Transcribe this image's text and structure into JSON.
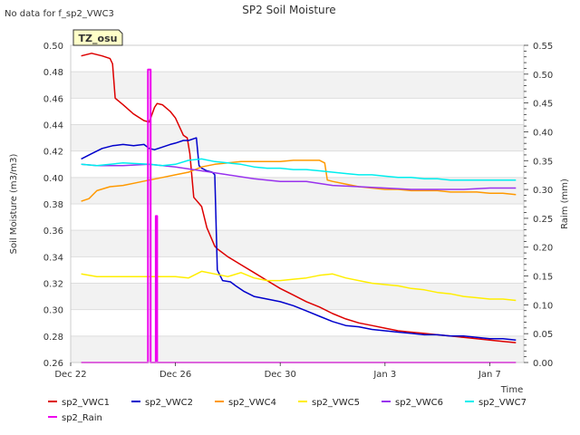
{
  "nodata_note": "No data for f_sp2_VWC3",
  "chart_data": {
    "type": "line",
    "title": "SP2 Soil Moisture",
    "xlabel": "Time",
    "ylabel": "Soil Moisture (m3/m3)",
    "y2label": "Raim (mm)",
    "badge": "TZ_osu",
    "x_tick_labels": [
      "Dec 22",
      "Dec 26",
      "Dec 30",
      "Jan 3",
      "Jan 7"
    ],
    "x_tick_days": [
      0,
      4,
      8,
      12,
      16
    ],
    "xlim_days": [
      0,
      17.3
    ],
    "ylim": [
      0.26,
      0.5
    ],
    "y_ticks": [
      "0.26",
      "0.28",
      "0.30",
      "0.32",
      "0.34",
      "0.36",
      "0.38",
      "0.40",
      "0.42",
      "0.44",
      "0.46",
      "0.48",
      "0.50"
    ],
    "y2lim": [
      0.0,
      0.55
    ],
    "y2_ticks": [
      "0.00",
      "0.05",
      "0.10",
      "0.15",
      "0.20",
      "0.25",
      "0.30",
      "0.35",
      "0.40",
      "0.45",
      "0.50",
      "0.55"
    ],
    "grid": true,
    "legend_position": "bottom",
    "series": [
      {
        "name": "sp2_VWC1",
        "color": "#dd0000",
        "axis": "left",
        "x": [
          0.4,
          0.8,
          1.2,
          1.5,
          1.6,
          1.7,
          2.0,
          2.4,
          2.8,
          3.0,
          3.2,
          3.3,
          3.5,
          3.8,
          4.0,
          4.3,
          4.45,
          4.55,
          4.7,
          5.0,
          5.2,
          5.5,
          5.6,
          6.0,
          6.5,
          7.0,
          7.5,
          8.0,
          8.5,
          9.0,
          9.5,
          10.0,
          10.5,
          11.0,
          11.5,
          12.0,
          12.5,
          13.0,
          13.5,
          14.0,
          14.5,
          15.0,
          15.5,
          16.0,
          16.5,
          17.0
        ],
        "y": [
          0.492,
          0.494,
          0.492,
          0.49,
          0.486,
          0.46,
          0.455,
          0.448,
          0.443,
          0.442,
          0.453,
          0.456,
          0.455,
          0.45,
          0.445,
          0.432,
          0.43,
          0.418,
          0.385,
          0.378,
          0.362,
          0.348,
          0.346,
          0.34,
          0.334,
          0.328,
          0.322,
          0.316,
          0.311,
          0.306,
          0.302,
          0.297,
          0.293,
          0.29,
          0.288,
          0.286,
          0.284,
          0.283,
          0.282,
          0.281,
          0.28,
          0.279,
          0.278,
          0.277,
          0.276,
          0.275
        ]
      },
      {
        "name": "sp2_VWC2",
        "color": "#0000cc",
        "axis": "left",
        "x": [
          0.4,
          0.8,
          1.2,
          1.6,
          2.0,
          2.4,
          2.8,
          3.0,
          3.2,
          3.5,
          3.8,
          4.0,
          4.3,
          4.5,
          4.8,
          4.9,
          5.0,
          5.2,
          5.4,
          5.5,
          5.6,
          5.8,
          6.1,
          6.3,
          6.6,
          7.0,
          7.5,
          8.0,
          8.5,
          9.0,
          9.5,
          10.0,
          10.5,
          11.0,
          11.5,
          12.0,
          12.5,
          13.0,
          13.5,
          14.0,
          14.5,
          15.0,
          15.5,
          16.0,
          16.5,
          17.0
        ],
        "y": [
          0.414,
          0.418,
          0.422,
          0.424,
          0.425,
          0.424,
          0.425,
          0.422,
          0.421,
          0.423,
          0.425,
          0.426,
          0.428,
          0.428,
          0.43,
          0.409,
          0.407,
          0.405,
          0.404,
          0.402,
          0.33,
          0.322,
          0.321,
          0.318,
          0.314,
          0.31,
          0.308,
          0.306,
          0.303,
          0.299,
          0.295,
          0.291,
          0.288,
          0.287,
          0.285,
          0.284,
          0.283,
          0.282,
          0.281,
          0.281,
          0.28,
          0.28,
          0.279,
          0.278,
          0.278,
          0.277
        ]
      },
      {
        "name": "sp2_VWC4",
        "color": "#ff9900",
        "axis": "left",
        "x": [
          0.4,
          0.7,
          1.0,
          1.5,
          2.0,
          2.5,
          3.0,
          3.5,
          4.0,
          4.5,
          5.0,
          5.5,
          6.0,
          6.5,
          7.0,
          7.5,
          8.0,
          8.5,
          9.0,
          9.5,
          9.7,
          9.8,
          10.0,
          10.5,
          11.0,
          11.5,
          12.0,
          12.5,
          13.0,
          13.5,
          14.0,
          14.5,
          15.0,
          15.5,
          16.0,
          16.5,
          17.0
        ],
        "y": [
          0.382,
          0.384,
          0.39,
          0.393,
          0.394,
          0.396,
          0.398,
          0.4,
          0.402,
          0.404,
          0.408,
          0.41,
          0.411,
          0.412,
          0.412,
          0.412,
          0.412,
          0.413,
          0.413,
          0.413,
          0.411,
          0.398,
          0.397,
          0.395,
          0.393,
          0.392,
          0.391,
          0.391,
          0.39,
          0.39,
          0.39,
          0.389,
          0.389,
          0.389,
          0.388,
          0.388,
          0.387
        ]
      },
      {
        "name": "sp2_VWC5",
        "color": "#ffee00",
        "axis": "left",
        "x": [
          0.4,
          1.0,
          2.0,
          3.0,
          4.0,
          4.5,
          5.0,
          5.5,
          6.0,
          6.5,
          7.0,
          7.5,
          8.0,
          8.5,
          9.0,
          9.5,
          10.0,
          10.5,
          11.0,
          11.5,
          12.0,
          12.5,
          13.0,
          13.5,
          14.0,
          14.5,
          15.0,
          15.5,
          16.0,
          16.5,
          17.0
        ],
        "y": [
          0.327,
          0.325,
          0.325,
          0.325,
          0.325,
          0.324,
          0.329,
          0.327,
          0.325,
          0.328,
          0.324,
          0.322,
          0.322,
          0.323,
          0.324,
          0.326,
          0.327,
          0.324,
          0.322,
          0.32,
          0.319,
          0.318,
          0.316,
          0.315,
          0.313,
          0.312,
          0.31,
          0.309,
          0.308,
          0.308,
          0.307
        ]
      },
      {
        "name": "sp2_VWC6",
        "color": "#9933ee",
        "axis": "left",
        "x": [
          0.4,
          1.0,
          2.0,
          3.0,
          4.0,
          5.0,
          6.0,
          7.0,
          8.0,
          9.0,
          10.0,
          11.0,
          12.0,
          13.0,
          14.0,
          15.0,
          16.0,
          17.0
        ],
        "y": [
          0.41,
          0.409,
          0.409,
          0.41,
          0.408,
          0.405,
          0.402,
          0.399,
          0.397,
          0.397,
          0.394,
          0.393,
          0.392,
          0.391,
          0.391,
          0.391,
          0.392,
          0.392
        ]
      },
      {
        "name": "sp2_VWC7",
        "color": "#00eeee",
        "axis": "left",
        "x": [
          0.4,
          1.0,
          2.0,
          3.0,
          3.5,
          4.0,
          4.5,
          5.0,
          5.5,
          6.0,
          6.5,
          7.0,
          7.5,
          8.0,
          8.5,
          9.0,
          9.5,
          10.0,
          10.5,
          11.0,
          11.5,
          12.0,
          12.5,
          13.0,
          13.5,
          14.0,
          14.5,
          15.0,
          15.5,
          16.0,
          16.5,
          17.0
        ],
        "y": [
          0.41,
          0.409,
          0.411,
          0.41,
          0.409,
          0.41,
          0.413,
          0.414,
          0.412,
          0.411,
          0.41,
          0.408,
          0.407,
          0.407,
          0.406,
          0.406,
          0.405,
          0.404,
          0.403,
          0.402,
          0.402,
          0.401,
          0.4,
          0.4,
          0.399,
          0.399,
          0.398,
          0.398,
          0.398,
          0.398,
          0.398,
          0.398
        ]
      },
      {
        "name": "sp2_Rain",
        "color": "#ee00ee",
        "axis": "right",
        "x": [
          0.4,
          2.95,
          2.95,
          3.0,
          3.0,
          3.05,
          3.05,
          3.25,
          3.25,
          3.3,
          3.3,
          17.0
        ],
        "y": [
          0.0,
          0.0,
          0.508,
          0.508,
          0.508,
          0.508,
          0.0,
          0.0,
          0.254,
          0.254,
          0.0,
          0.0
        ]
      }
    ]
  }
}
